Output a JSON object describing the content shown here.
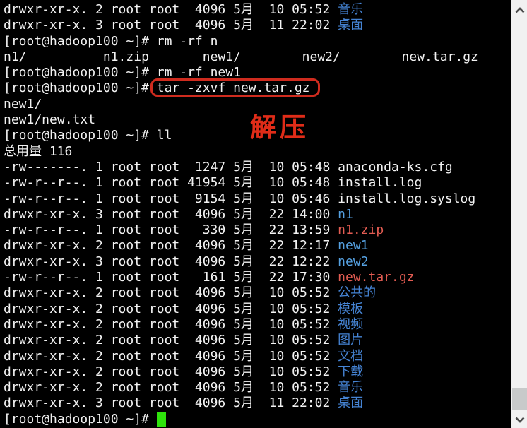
{
  "terminal": {
    "title": "hadoop100-root-shell",
    "prompt": "[root@hadoop100 ~]#",
    "colors": {
      "bg": "#000000",
      "fg": "#f2f2f2",
      "dir": "#55a0e0",
      "dir_cjk": "#4583d3",
      "archive": "#e25c52",
      "annotation": "#e02c18",
      "box": "#cf2b1e",
      "cursor": "#2fe30c"
    },
    "lines": [
      {
        "segments": [
          {
            "text": "drwxr-xr-x. 2 root root  4096 5月  10 05:52 ",
            "color": "fg"
          },
          {
            "text": "音乐",
            "color": "dir_cjk"
          }
        ]
      },
      {
        "segments": [
          {
            "text": "drwxr-xr-x. 3 root root  4096 5月  11 22:02 ",
            "color": "fg"
          },
          {
            "text": "桌面",
            "color": "dir_cjk"
          }
        ]
      },
      {
        "segments": [
          {
            "text": "[root@hadoop100 ~]# rm -rf n",
            "color": "fg"
          }
        ]
      },
      {
        "segments": [
          {
            "text": "n1/          n1.zip       new1/        new2/        new.tar.gz",
            "color": "fg"
          }
        ]
      },
      {
        "segments": [
          {
            "text": "[root@hadoop100 ~]# rm -rf new1",
            "color": "fg"
          }
        ]
      },
      {
        "segments": [
          {
            "text": "[root@hadoop100 ~]# ",
            "color": "fg"
          },
          {
            "text": "tar -zxvf new.tar.gz",
            "color": "fg",
            "boxed": true
          }
        ]
      },
      {
        "segments": [
          {
            "text": "new1/",
            "color": "fg"
          }
        ]
      },
      {
        "segments": [
          {
            "text": "new1/new.txt",
            "color": "fg"
          }
        ]
      },
      {
        "segments": [
          {
            "text": "[root@hadoop100 ~]# ll",
            "color": "fg"
          }
        ]
      },
      {
        "segments": [
          {
            "text": "总用量 116",
            "color": "fg"
          }
        ]
      },
      {
        "segments": [
          {
            "text": "-rw-------. 1 root root  1247 5月  10 05:48 anaconda-ks.cfg",
            "color": "fg"
          }
        ]
      },
      {
        "segments": [
          {
            "text": "-rw-r--r--. 1 root root 41954 5月  10 05:48 install.log",
            "color": "fg"
          }
        ]
      },
      {
        "segments": [
          {
            "text": "-rw-r--r--. 1 root root  9154 5月  10 05:46 install.log.syslog",
            "color": "fg"
          }
        ]
      },
      {
        "segments": [
          {
            "text": "drwxr-xr-x. 3 root root  4096 5月  22 14:00 ",
            "color": "fg"
          },
          {
            "text": "n1",
            "color": "dir"
          }
        ]
      },
      {
        "segments": [
          {
            "text": "-rw-r--r--. 1 root root   330 5月  22 13:59 ",
            "color": "fg"
          },
          {
            "text": "n1.zip",
            "color": "archive"
          }
        ]
      },
      {
        "segments": [
          {
            "text": "drwxr-xr-x. 2 root root  4096 5月  22 12:17 ",
            "color": "fg"
          },
          {
            "text": "new1",
            "color": "dir"
          }
        ]
      },
      {
        "segments": [
          {
            "text": "drwxr-xr-x. 3 root root  4096 5月  22 12:22 ",
            "color": "fg"
          },
          {
            "text": "new2",
            "color": "dir"
          }
        ]
      },
      {
        "segments": [
          {
            "text": "-rw-r--r--. 1 root root   161 5月  22 17:30 ",
            "color": "fg"
          },
          {
            "text": "new.tar.gz",
            "color": "archive"
          }
        ]
      },
      {
        "segments": [
          {
            "text": "drwxr-xr-x. 2 root root  4096 5月  10 05:52 ",
            "color": "fg"
          },
          {
            "text": "公共的",
            "color": "dir_cjk"
          }
        ]
      },
      {
        "segments": [
          {
            "text": "drwxr-xr-x. 2 root root  4096 5月  10 05:52 ",
            "color": "fg"
          },
          {
            "text": "模板",
            "color": "dir_cjk"
          }
        ]
      },
      {
        "segments": [
          {
            "text": "drwxr-xr-x. 2 root root  4096 5月  10 05:52 ",
            "color": "fg"
          },
          {
            "text": "视频",
            "color": "dir_cjk"
          }
        ]
      },
      {
        "segments": [
          {
            "text": "drwxr-xr-x. 2 root root  4096 5月  10 05:52 ",
            "color": "fg"
          },
          {
            "text": "图片",
            "color": "dir_cjk"
          }
        ]
      },
      {
        "segments": [
          {
            "text": "drwxr-xr-x. 2 root root  4096 5月  10 05:52 ",
            "color": "fg"
          },
          {
            "text": "文档",
            "color": "dir_cjk"
          }
        ]
      },
      {
        "segments": [
          {
            "text": "drwxr-xr-x. 2 root root  4096 5月  10 05:52 ",
            "color": "fg"
          },
          {
            "text": "下载",
            "color": "dir_cjk"
          }
        ]
      },
      {
        "segments": [
          {
            "text": "drwxr-xr-x. 2 root root  4096 5月  10 05:52 ",
            "color": "fg"
          },
          {
            "text": "音乐",
            "color": "dir_cjk"
          }
        ]
      },
      {
        "segments": [
          {
            "text": "drwxr-xr-x. 3 root root  4096 5月  11 22:02 ",
            "color": "fg"
          },
          {
            "text": "桌面",
            "color": "dir_cjk"
          }
        ]
      },
      {
        "segments": [
          {
            "text": "[root@hadoop100 ~]# ",
            "color": "fg"
          }
        ],
        "cursor": true
      }
    ]
  },
  "annotations": {
    "decompress_label": "解压",
    "highlighted_command": "tar -zxvf new.tar.gz"
  },
  "scrollbar": {
    "up_icon": "chevron-up",
    "down_icon": "chevron-down"
  }
}
